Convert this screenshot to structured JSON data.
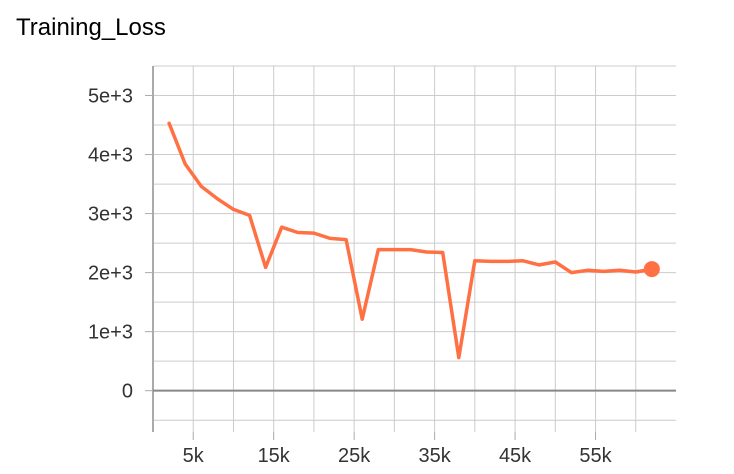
{
  "chart_data": {
    "type": "line",
    "title": "Training_Loss",
    "xlabel": "",
    "ylabel": "",
    "xlim": [
      0,
      65000
    ],
    "ylim": [
      -700,
      5500
    ],
    "grid": true,
    "x_ticks": [
      5000,
      15000,
      25000,
      35000,
      45000,
      55000
    ],
    "x_tick_labels": [
      "5k",
      "15k",
      "25k",
      "35k",
      "45k",
      "55k"
    ],
    "y_ticks": [
      0,
      1000,
      2000,
      3000,
      4000,
      5000
    ],
    "y_tick_labels": [
      "0",
      "1e+3",
      "2e+3",
      "3e+3",
      "4e+3",
      "5e+3"
    ],
    "series": [
      {
        "color": "#ff7043",
        "x": [
          2000,
          4000,
          6000,
          8000,
          10000,
          12000,
          14000,
          16000,
          18000,
          20000,
          22000,
          24000,
          26000,
          28000,
          30000,
          32000,
          34000,
          36000,
          38000,
          40000,
          42000,
          44000,
          46000,
          48000,
          50000,
          52000,
          54000,
          56000,
          58000,
          60000,
          62000
        ],
        "y": [
          4530,
          3840,
          3460,
          3250,
          3070,
          2970,
          2090,
          2770,
          2680,
          2670,
          2580,
          2560,
          1210,
          2390,
          2390,
          2390,
          2350,
          2340,
          560,
          2200,
          2190,
          2190,
          2200,
          2130,
          2180,
          2000,
          2040,
          2020,
          2040,
          2010,
          2060
        ]
      }
    ]
  }
}
